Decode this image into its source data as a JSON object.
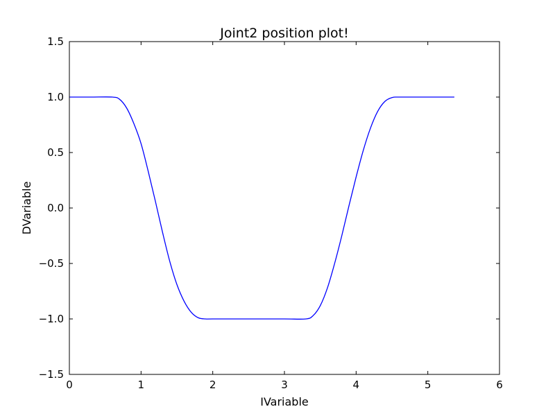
{
  "chart_data": {
    "type": "line",
    "title": "Joint2 position plot!",
    "xlabel": "IVariable",
    "ylabel": "DVariable",
    "xlim": [
      0,
      6
    ],
    "ylim": [
      -1.5,
      1.5
    ],
    "grid": false,
    "xticks": [
      {
        "value": 0,
        "label": "0"
      },
      {
        "value": 1,
        "label": "1"
      },
      {
        "value": 2,
        "label": "2"
      },
      {
        "value": 3,
        "label": "3"
      },
      {
        "value": 4,
        "label": "4"
      },
      {
        "value": 5,
        "label": "5"
      },
      {
        "value": 6,
        "label": "6"
      }
    ],
    "yticks": [
      {
        "value": -1.5,
        "label": "−1.5"
      },
      {
        "value": -1.0,
        "label": "−1.0"
      },
      {
        "value": -0.5,
        "label": "−0.5"
      },
      {
        "value": 0.0,
        "label": "0.0"
      },
      {
        "value": 0.5,
        "label": "0.5"
      },
      {
        "value": 1.0,
        "label": "1.0"
      },
      {
        "value": 1.5,
        "label": "1.5"
      }
    ],
    "series": [
      {
        "color": "#0000ff",
        "x": [
          0.0,
          0.3,
          0.6,
          0.7,
          0.8,
          0.9,
          1.0,
          1.1,
          1.2,
          1.3,
          1.4,
          1.5,
          1.6,
          1.7,
          1.8,
          1.9,
          2.0,
          2.5,
          3.0,
          3.3,
          3.4,
          3.5,
          3.6,
          3.7,
          3.8,
          3.9,
          4.0,
          4.1,
          4.2,
          4.3,
          4.4,
          4.5,
          4.6,
          5.0,
          5.37
        ],
        "y": [
          1.0,
          1.0,
          1.0,
          0.98,
          0.9,
          0.76,
          0.58,
          0.33,
          0.06,
          -0.22,
          -0.48,
          -0.69,
          -0.84,
          -0.94,
          -0.99,
          -1.0,
          -1.0,
          -1.0,
          -1.0,
          -1.0,
          -0.97,
          -0.88,
          -0.72,
          -0.5,
          -0.25,
          0.02,
          0.28,
          0.52,
          0.72,
          0.87,
          0.96,
          0.995,
          1.0,
          1.0,
          1.0
        ]
      }
    ]
  }
}
